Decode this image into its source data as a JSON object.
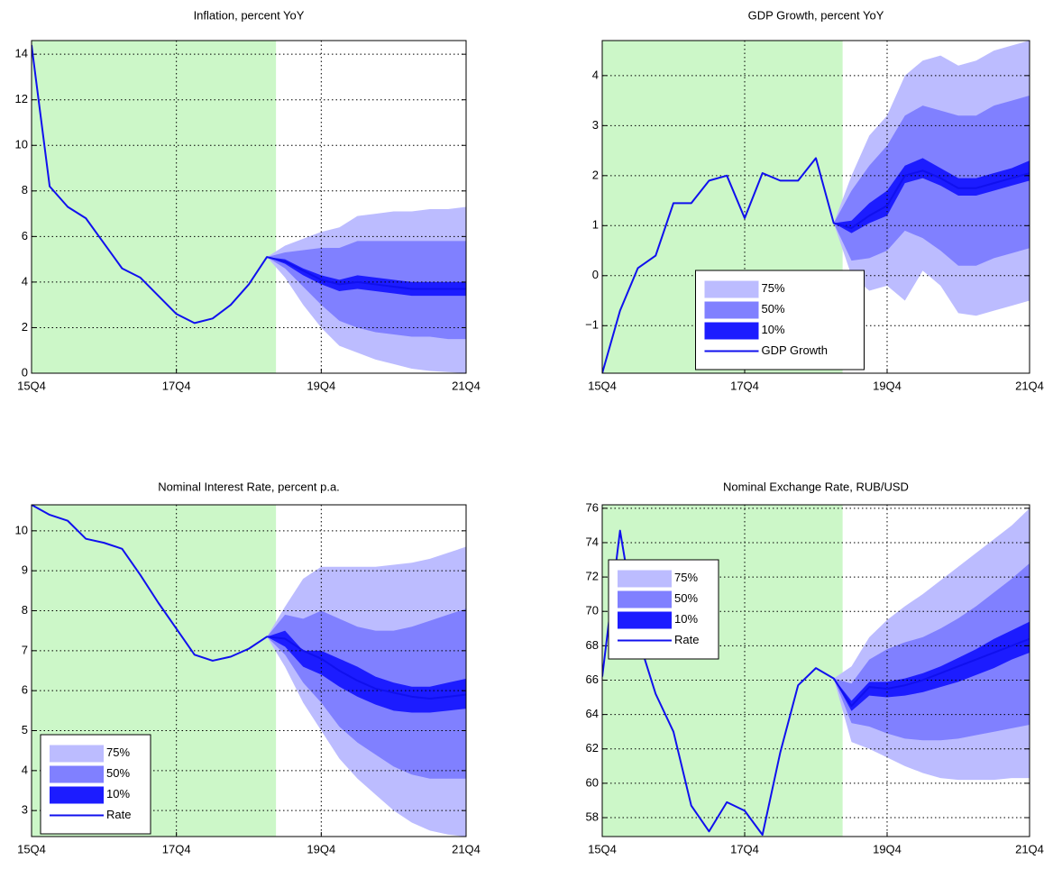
{
  "chart_data": [
    {
      "type": "fan",
      "title": "Inflation, percent YoY",
      "categories": [
        "15Q4",
        null,
        null,
        null,
        null,
        null,
        null,
        null,
        "17Q4",
        null,
        null,
        null,
        null,
        null,
        null,
        null,
        "19Q4",
        null,
        null,
        null,
        null,
        null,
        null,
        null,
        "21Q4"
      ],
      "ylim": [
        0,
        14.6
      ],
      "yticks": [
        0,
        2,
        4,
        6,
        8,
        10,
        12,
        14
      ],
      "grid": true,
      "shade_color": "#ccf7c8",
      "series": [
        {
          "color": "#bcbcff",
          "lower": [
            null,
            null,
            null,
            null,
            null,
            null,
            null,
            null,
            null,
            null,
            null,
            null,
            null,
            5.1,
            4.2,
            3.0,
            2.0,
            1.2,
            0.9,
            0.6,
            0.4,
            0.2,
            0.1,
            0.05,
            0.0
          ],
          "upper": [
            null,
            null,
            null,
            null,
            null,
            null,
            null,
            null,
            null,
            null,
            null,
            null,
            null,
            5.1,
            5.6,
            5.9,
            6.2,
            6.4,
            6.9,
            7.0,
            7.1,
            7.1,
            7.2,
            7.2,
            7.3
          ]
        },
        {
          "color": "#8080ff",
          "lower": [
            null,
            null,
            null,
            null,
            null,
            null,
            null,
            null,
            null,
            null,
            null,
            null,
            null,
            5.1,
            4.6,
            3.8,
            3.0,
            2.3,
            2.0,
            1.8,
            1.7,
            1.6,
            1.6,
            1.5,
            1.5
          ],
          "upper": [
            null,
            null,
            null,
            null,
            null,
            null,
            null,
            null,
            null,
            null,
            null,
            null,
            null,
            5.1,
            5.3,
            5.4,
            5.5,
            5.5,
            5.8,
            5.8,
            5.8,
            5.8,
            5.8,
            5.8,
            5.8
          ]
        },
        {
          "color": "#1c1cff",
          "lower": [
            null,
            null,
            null,
            null,
            null,
            null,
            null,
            null,
            null,
            null,
            null,
            null,
            null,
            5.1,
            4.8,
            4.3,
            3.9,
            3.6,
            3.7,
            3.6,
            3.5,
            3.4,
            3.4,
            3.4,
            3.4
          ],
          "upper": [
            null,
            null,
            null,
            null,
            null,
            null,
            null,
            null,
            null,
            null,
            null,
            null,
            null,
            5.1,
            5.0,
            4.6,
            4.3,
            4.1,
            4.3,
            4.2,
            4.1,
            4.0,
            4.0,
            4.0,
            4.0
          ]
        },
        {
          "color": "#1010ee",
          "values": [
            14.4,
            8.2,
            7.3,
            6.8,
            5.7,
            4.6,
            4.2,
            3.4,
            2.6,
            2.2,
            2.4,
            3.0,
            3.9,
            5.1,
            4.9,
            4.5,
            4.1,
            3.9,
            4.0,
            3.9,
            3.8,
            3.7,
            3.7,
            3.7,
            3.7
          ]
        }
      ]
    },
    {
      "type": "fan",
      "title": "GDP Growth, percent YoY",
      "categories": [
        "15Q4",
        null,
        null,
        null,
        null,
        null,
        null,
        null,
        "17Q4",
        null,
        null,
        null,
        null,
        null,
        null,
        null,
        "19Q4",
        null,
        null,
        null,
        null,
        null,
        null,
        null,
        "21Q4"
      ],
      "ylim": [
        -1.95,
        4.7
      ],
      "yticks": [
        {
          "value": -1,
          "label": "−1"
        },
        0,
        1,
        2,
        3,
        4
      ],
      "grid": true,
      "shade_color": "#ccf7c8",
      "legend": "lower center",
      "series": [
        {
          "name": "75%",
          "color": "#bcbcff",
          "lower": [
            null,
            null,
            null,
            null,
            null,
            null,
            null,
            null,
            null,
            null,
            null,
            null,
            null,
            1.05,
            0.0,
            -0.3,
            -0.2,
            -0.5,
            0.1,
            -0.2,
            -0.75,
            -0.8,
            -0.7,
            -0.6,
            -0.5
          ],
          "upper": [
            null,
            null,
            null,
            null,
            null,
            null,
            null,
            null,
            null,
            null,
            null,
            null,
            null,
            1.05,
            2.0,
            2.8,
            3.2,
            4.0,
            4.3,
            4.4,
            4.2,
            4.3,
            4.5,
            4.6,
            4.7
          ]
        },
        {
          "name": "50%",
          "color": "#8080ff",
          "lower": [
            null,
            null,
            null,
            null,
            null,
            null,
            null,
            null,
            null,
            null,
            null,
            null,
            null,
            1.05,
            0.3,
            0.35,
            0.5,
            0.9,
            0.75,
            0.5,
            0.2,
            0.2,
            0.35,
            0.45,
            0.55
          ],
          "upper": [
            null,
            null,
            null,
            null,
            null,
            null,
            null,
            null,
            null,
            null,
            null,
            null,
            null,
            1.05,
            1.7,
            2.2,
            2.6,
            3.2,
            3.4,
            3.3,
            3.2,
            3.2,
            3.4,
            3.5,
            3.6
          ]
        },
        {
          "name": "10%",
          "color": "#1c1cff",
          "lower": [
            null,
            null,
            null,
            null,
            null,
            null,
            null,
            null,
            null,
            null,
            null,
            null,
            null,
            1.05,
            0.85,
            1.05,
            1.2,
            1.85,
            1.95,
            1.8,
            1.6,
            1.6,
            1.7,
            1.8,
            1.9
          ],
          "upper": [
            null,
            null,
            null,
            null,
            null,
            null,
            null,
            null,
            null,
            null,
            null,
            null,
            null,
            1.05,
            1.1,
            1.45,
            1.7,
            2.2,
            2.35,
            2.15,
            1.95,
            1.95,
            2.05,
            2.15,
            2.3
          ]
        },
        {
          "name": "GDP Growth",
          "color": "#1010ee",
          "values": [
            -1.95,
            -0.7,
            0.15,
            0.4,
            1.45,
            1.45,
            1.9,
            2.0,
            1.15,
            2.05,
            1.9,
            1.9,
            2.35,
            1.05,
            0.95,
            1.2,
            1.4,
            2.0,
            2.1,
            1.95,
            1.75,
            1.75,
            1.85,
            1.95,
            2.05
          ]
        }
      ]
    },
    {
      "type": "fan",
      "title": "Nominal Interest Rate, percent p.a.",
      "categories": [
        "15Q4",
        null,
        null,
        null,
        null,
        null,
        null,
        null,
        "17Q4",
        null,
        null,
        null,
        null,
        null,
        null,
        null,
        "19Q4",
        null,
        null,
        null,
        null,
        null,
        null,
        null,
        "21Q4"
      ],
      "ylim": [
        2.35,
        10.65
      ],
      "yticks": [
        3,
        4,
        5,
        6,
        7,
        8,
        9,
        10
      ],
      "grid": true,
      "shade_color": "#ccf7c8",
      "legend": "lower left",
      "series": [
        {
          "name": "75%",
          "color": "#bcbcff",
          "lower": [
            null,
            null,
            null,
            null,
            null,
            null,
            null,
            null,
            null,
            null,
            null,
            null,
            null,
            7.35,
            6.6,
            5.7,
            5.0,
            4.3,
            3.8,
            3.4,
            3.0,
            2.7,
            2.5,
            2.4,
            2.35
          ],
          "upper": [
            null,
            null,
            null,
            null,
            null,
            null,
            null,
            null,
            null,
            null,
            null,
            null,
            null,
            7.35,
            8.1,
            8.8,
            9.1,
            9.1,
            9.1,
            9.1,
            9.15,
            9.2,
            9.3,
            9.45,
            9.6
          ]
        },
        {
          "name": "50%",
          "color": "#8080ff",
          "lower": [
            null,
            null,
            null,
            null,
            null,
            null,
            null,
            null,
            null,
            null,
            null,
            null,
            null,
            7.35,
            6.9,
            6.2,
            5.7,
            5.1,
            4.7,
            4.4,
            4.1,
            3.9,
            3.8,
            3.8,
            3.8
          ],
          "upper": [
            null,
            null,
            null,
            null,
            null,
            null,
            null,
            null,
            null,
            null,
            null,
            null,
            null,
            7.35,
            7.9,
            7.8,
            8.0,
            7.8,
            7.6,
            7.5,
            7.5,
            7.6,
            7.75,
            7.9,
            8.05
          ]
        },
        {
          "name": "10%",
          "color": "#1c1cff",
          "lower": [
            null,
            null,
            null,
            null,
            null,
            null,
            null,
            null,
            null,
            null,
            null,
            null,
            null,
            7.35,
            7.1,
            6.6,
            6.4,
            6.1,
            5.85,
            5.65,
            5.5,
            5.45,
            5.45,
            5.5,
            5.55
          ],
          "upper": [
            null,
            null,
            null,
            null,
            null,
            null,
            null,
            null,
            null,
            null,
            null,
            null,
            null,
            7.35,
            7.5,
            7.0,
            7.0,
            6.8,
            6.6,
            6.35,
            6.2,
            6.1,
            6.1,
            6.2,
            6.3
          ]
        },
        {
          "name": "Rate",
          "color": "#1010ee",
          "values": [
            10.65,
            10.4,
            10.25,
            9.8,
            9.7,
            9.55,
            8.9,
            8.2,
            7.55,
            6.9,
            6.75,
            6.85,
            7.05,
            7.35,
            7.3,
            7.0,
            6.8,
            6.5,
            6.25,
            6.05,
            5.95,
            5.85,
            5.8,
            5.85,
            5.9
          ]
        }
      ]
    },
    {
      "type": "fan",
      "title": "Nominal Exchange Rate, RUB/USD",
      "categories": [
        "15Q4",
        null,
        null,
        null,
        null,
        null,
        null,
        null,
        "17Q4",
        null,
        null,
        null,
        null,
        null,
        null,
        null,
        "19Q4",
        null,
        null,
        null,
        null,
        null,
        null,
        null,
        "21Q4"
      ],
      "ylim": [
        56.9,
        76.2
      ],
      "yticks": [
        58,
        60,
        62,
        64,
        66,
        68,
        70,
        72,
        74,
        76
      ],
      "grid": true,
      "shade_color": "#ccf7c8",
      "legend": "center left",
      "series": [
        {
          "name": "75%",
          "color": "#bcbcff",
          "lower": [
            null,
            null,
            null,
            null,
            null,
            null,
            null,
            null,
            null,
            null,
            null,
            null,
            null,
            66.1,
            62.4,
            62.0,
            61.5,
            61.0,
            60.6,
            60.3,
            60.2,
            60.2,
            60.2,
            60.3,
            60.3
          ],
          "upper": [
            null,
            null,
            null,
            null,
            null,
            null,
            null,
            null,
            null,
            null,
            null,
            null,
            null,
            66.1,
            66.8,
            68.5,
            69.5,
            70.3,
            71.0,
            71.8,
            72.6,
            73.4,
            74.2,
            75.0,
            76.0
          ]
        },
        {
          "name": "50%",
          "color": "#8080ff",
          "lower": [
            null,
            null,
            null,
            null,
            null,
            null,
            null,
            null,
            null,
            null,
            null,
            null,
            null,
            66.1,
            63.5,
            63.3,
            62.9,
            62.6,
            62.5,
            62.5,
            62.6,
            62.8,
            63.0,
            63.2,
            63.4
          ],
          "upper": [
            null,
            null,
            null,
            null,
            null,
            null,
            null,
            null,
            null,
            null,
            null,
            null,
            null,
            66.1,
            65.8,
            67.2,
            67.8,
            68.2,
            68.5,
            69.0,
            69.6,
            70.3,
            71.1,
            71.9,
            72.8
          ]
        },
        {
          "name": "10%",
          "color": "#1c1cff",
          "lower": [
            null,
            null,
            null,
            null,
            null,
            null,
            null,
            null,
            null,
            null,
            null,
            null,
            null,
            66.1,
            64.2,
            65.1,
            65.0,
            65.1,
            65.3,
            65.6,
            65.9,
            66.3,
            66.7,
            67.2,
            67.6
          ],
          "upper": [
            null,
            null,
            null,
            null,
            null,
            null,
            null,
            null,
            null,
            null,
            null,
            null,
            null,
            66.1,
            64.8,
            65.9,
            65.9,
            66.1,
            66.4,
            66.8,
            67.3,
            67.8,
            68.4,
            68.9,
            69.4
          ]
        },
        {
          "name": "Rate",
          "color": "#1010ee",
          "values": [
            66.2,
            74.7,
            68.5,
            65.2,
            63.0,
            58.7,
            57.2,
            58.9,
            58.4,
            57.0,
            61.8,
            65.7,
            66.7,
            66.1,
            64.5,
            65.6,
            65.5,
            65.7,
            66.0,
            66.4,
            66.8,
            67.2,
            67.6,
            68.0,
            68.4
          ]
        }
      ]
    }
  ]
}
